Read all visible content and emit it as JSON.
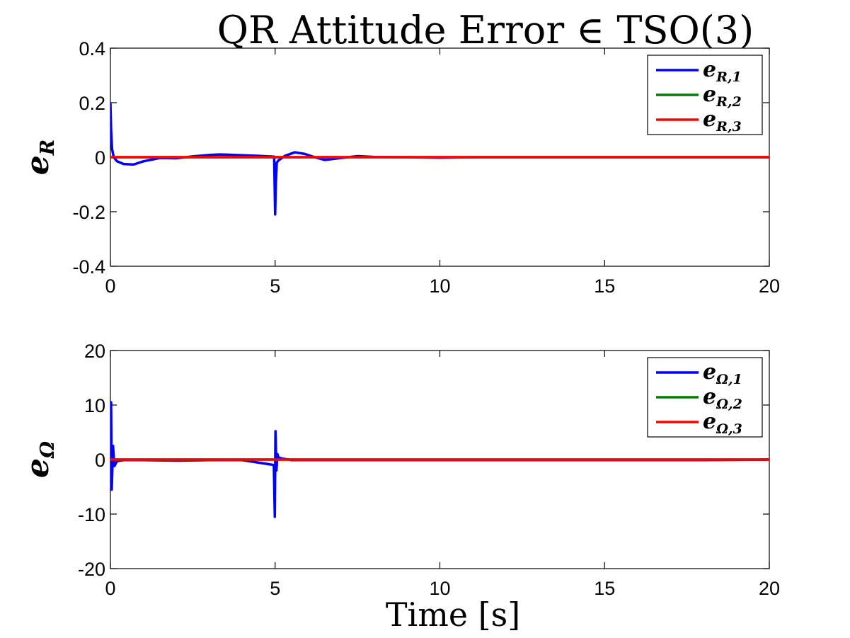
{
  "figure": {
    "title": "QR Attitude Error ∈ TSO(3)",
    "xlabel": "Time [s]"
  },
  "chart_data": [
    {
      "type": "line",
      "ylabel_main": "e",
      "ylabel_sub": "R",
      "xlim": [
        0,
        20
      ],
      "ylim": [
        -0.4,
        0.4
      ],
      "xticks": [
        0,
        5,
        10,
        15,
        20
      ],
      "yticks": [
        -0.4,
        -0.2,
        0,
        0.2,
        0.4
      ],
      "xtick_labels": [
        "0",
        "5",
        "10",
        "15",
        "20"
      ],
      "ytick_labels": [
        "-0.4",
        "-0.2",
        "0",
        "0.2",
        "0.4"
      ],
      "grid": false,
      "legend_placement": "top-right",
      "series": [
        {
          "name_main": "e",
          "name_sub": "R,1",
          "color": "#0000ff",
          "x": [
            0,
            0.02,
            0.05,
            0.1,
            0.2,
            0.4,
            0.7,
            1.0,
            1.5,
            2.0,
            2.5,
            3.0,
            3.3,
            3.6,
            4.0,
            4.5,
            4.97,
            5.0,
            5.02,
            5.05,
            5.1,
            5.3,
            5.6,
            5.9,
            6.2,
            6.5,
            7.0,
            7.5,
            8.0,
            9.0,
            10.0,
            11.0,
            12.0,
            13.0,
            14.0,
            15.0,
            16.0,
            17.0,
            18.0,
            19.0,
            20.0
          ],
          "y": [
            0.2,
            0.1,
            0.03,
            0.0,
            -0.015,
            -0.025,
            -0.027,
            -0.015,
            -0.003,
            -0.004,
            0.003,
            0.008,
            0.01,
            0.009,
            0.007,
            0.005,
            0.002,
            -0.21,
            -0.1,
            -0.02,
            -0.012,
            0.005,
            0.018,
            0.012,
            0.0,
            -0.01,
            -0.003,
            0.004,
            0.001,
            0.0,
            -0.002,
            0.0,
            0.0,
            0.0,
            0.0,
            0.0,
            0.0,
            0.0,
            0.0,
            0.0,
            0.0
          ]
        },
        {
          "name_main": "e",
          "name_sub": "R,2",
          "color": "#007f00",
          "x": [
            0,
            20
          ],
          "y": [
            0,
            0
          ]
        },
        {
          "name_main": "e",
          "name_sub": "R,3",
          "color": "#ff0000",
          "x": [
            0,
            20
          ],
          "y": [
            0,
            0
          ]
        }
      ]
    },
    {
      "type": "line",
      "ylabel_main": "e",
      "ylabel_sub": "Ω",
      "xlim": [
        0,
        20
      ],
      "ylim": [
        -20,
        20
      ],
      "xticks": [
        0,
        5,
        10,
        15,
        20
      ],
      "yticks": [
        -20,
        -10,
        0,
        10,
        20
      ],
      "xtick_labels": [
        "0",
        "5",
        "10",
        "15",
        "20"
      ],
      "ytick_labels": [
        "-20",
        "-10",
        "0",
        "10",
        "20"
      ],
      "grid": false,
      "legend_placement": "top-right",
      "series": [
        {
          "name_main": "e",
          "name_sub": "Ω,1",
          "color": "#0000ff",
          "x": [
            0,
            0.02,
            0.04,
            0.08,
            0.12,
            0.2,
            0.4,
            1.0,
            2.0,
            3.0,
            4.0,
            4.96,
            4.99,
            5.01,
            5.04,
            5.07,
            5.1,
            5.2,
            5.5,
            6.0,
            7.0,
            8.0,
            10.0,
            12.0,
            14.0,
            16.0,
            18.0,
            20.0
          ],
          "y": [
            0,
            10.5,
            -5.5,
            2.5,
            -1.2,
            -0.3,
            -0.1,
            -0.1,
            -0.2,
            -0.1,
            -0.1,
            -1.0,
            -10.5,
            5.2,
            -2.0,
            1.0,
            0.4,
            0.2,
            -0.1,
            -0.1,
            -0.1,
            -0.1,
            -0.1,
            -0.1,
            -0.1,
            -0.1,
            -0.1,
            0.0
          ]
        },
        {
          "name_main": "e",
          "name_sub": "Ω,2",
          "color": "#007f00",
          "x": [
            0,
            20
          ],
          "y": [
            0,
            0
          ]
        },
        {
          "name_main": "e",
          "name_sub": "Ω,3",
          "color": "#ff0000",
          "x": [
            0,
            20
          ],
          "y": [
            0,
            0
          ]
        }
      ]
    }
  ]
}
